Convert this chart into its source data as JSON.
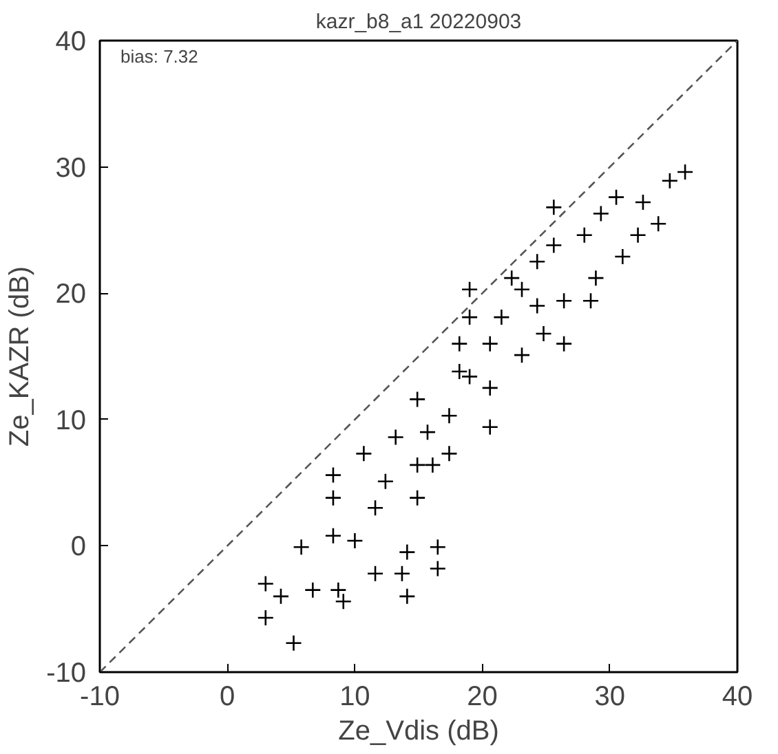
{
  "chart_data": {
    "type": "scatter",
    "title": "kazr_b8_a1 20220903",
    "xlabel": "Ze_Vdis (dB)",
    "ylabel": "Ze_KAZR (dB)",
    "annotations": [
      "bias: 7.32"
    ],
    "xlim": [
      -10,
      40
    ],
    "ylim": [
      -10,
      40
    ],
    "xticks": [
      -10,
      0,
      10,
      20,
      30,
      40
    ],
    "yticks": [
      -10,
      0,
      10,
      20,
      30,
      40
    ],
    "grid": false,
    "marker": "cross",
    "series": [
      {
        "color": "#000000",
        "x": [
          3.0,
          3.0,
          5.2,
          4.2,
          6.7,
          8.7,
          9.1,
          5.8,
          8.3,
          8.3,
          8.3,
          10.7,
          13.2,
          14.1,
          14.1,
          16.5,
          16.5,
          11.6,
          12.4,
          14.9,
          14.9,
          17.4,
          18.2,
          19.0,
          19.0,
          20.6,
          22.3,
          20.6,
          23.1,
          24.8,
          26.4,
          28.5,
          28.9,
          25.6,
          25.6,
          29.3,
          31.0,
          32.6,
          34.7,
          35.9,
          33.8,
          32.2,
          18.2,
          20.6,
          17.4,
          15.7,
          24.3,
          26.4,
          23.1,
          21.5,
          10.0,
          11.6,
          13.7,
          16.1,
          19.0,
          14.9,
          30.5,
          28.0,
          24.3
        ],
        "values": [
          -3.0,
          -5.7,
          -7.7,
          -4.0,
          -3.5,
          -3.5,
          -4.4,
          -0.1,
          0.8,
          3.8,
          5.6,
          7.3,
          8.6,
          -0.5,
          -4.0,
          -0.1,
          -1.8,
          3.0,
          5.1,
          6.4,
          11.6,
          10.3,
          13.8,
          18.1,
          20.3,
          16.0,
          21.2,
          9.4,
          15.1,
          16.8,
          19.4,
          19.4,
          21.2,
          26.8,
          23.8,
          26.3,
          22.9,
          27.2,
          28.9,
          29.6,
          25.5,
          24.6,
          16.0,
          12.5,
          7.3,
          9.0,
          22.5,
          16.0,
          20.3,
          18.1,
          0.4,
          -2.2,
          -2.2,
          6.4,
          13.4,
          3.8,
          27.6,
          24.6,
          19.0
        ]
      },
      {
        "type": "line",
        "color": "#555555",
        "line_style": "dashed",
        "marker": "none",
        "x": [
          -10,
          40
        ],
        "values": [
          -10,
          40
        ]
      }
    ]
  }
}
